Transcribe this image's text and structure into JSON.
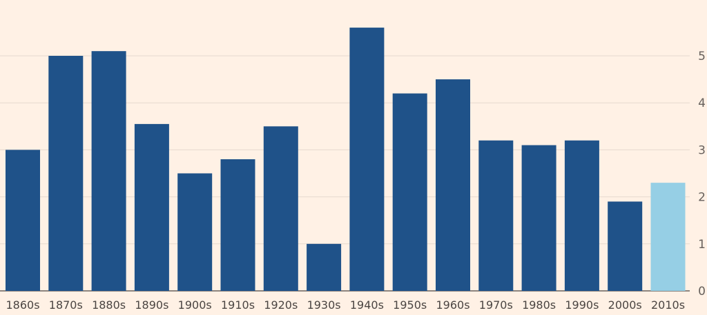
{
  "colors": {
    "background": "#fff1e5",
    "bar": "#1f5289",
    "bar_highlight": "#96cfe5",
    "grid": "#e6d9ce",
    "axis_text": "#66605c"
  },
  "chart_data": {
    "type": "bar",
    "title": "",
    "xlabel": "",
    "ylabel": "",
    "categories": [
      "1860s",
      "1870s",
      "1880s",
      "1890s",
      "1900s",
      "1910s",
      "1920s",
      "1930s",
      "1940s",
      "1950s",
      "1960s",
      "1970s",
      "1980s",
      "1990s",
      "2000s",
      "2010s"
    ],
    "values": [
      3.0,
      5.0,
      5.1,
      3.55,
      2.5,
      2.8,
      3.5,
      1.0,
      5.6,
      4.2,
      4.5,
      3.2,
      3.1,
      3.2,
      1.9,
      2.3
    ],
    "highlighted": [
      "2010s"
    ],
    "ylim": [
      0,
      6
    ],
    "yticks": [
      0,
      1,
      2,
      3,
      4,
      5
    ],
    "y_axis_position": "right",
    "grid": true,
    "legend": "none"
  }
}
